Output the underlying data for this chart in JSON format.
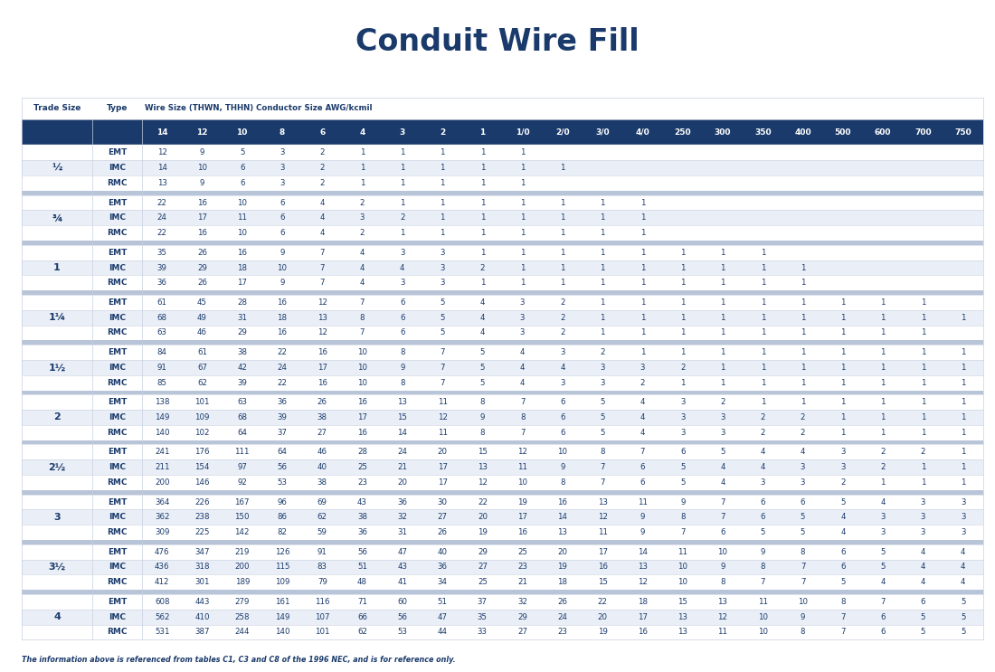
{
  "title": "Conduit Wire Fill",
  "subtitle": "Wire Size (THWN, THHN) Conductor Size AWG/kcmil",
  "footnote": "The information above is referenced from tables C1, C3 and C8 of the 1996 NEC, and is for reference only.",
  "col_header_label1": "Trade Size",
  "col_header_label2": "Type",
  "wire_sizes": [
    "14",
    "12",
    "10",
    "8",
    "6",
    "4",
    "3",
    "2",
    "1",
    "1/0",
    "2/0",
    "3/0",
    "4/0",
    "250",
    "300",
    "350",
    "400",
    "500",
    "600",
    "700",
    "750"
  ],
  "trade_sizes": [
    "½",
    "¾",
    "1",
    "1¼",
    "1½",
    "2",
    "2½",
    "3",
    "3½",
    "4"
  ],
  "types": [
    "EMT",
    "IMC",
    "RMC"
  ],
  "data": {
    "½": {
      "EMT": [
        "12",
        "9",
        "5",
        "3",
        "2",
        "1",
        "1",
        "1",
        "1",
        "1",
        "",
        "",
        "",
        "",
        "",
        "",
        "",
        "",
        "",
        "",
        ""
      ],
      "IMC": [
        "14",
        "10",
        "6",
        "3",
        "2",
        "1",
        "1",
        "1",
        "1",
        "1",
        "1",
        "",
        "",
        "",
        "",
        "",
        "",
        "",
        "",
        "",
        ""
      ],
      "RMC": [
        "13",
        "9",
        "6",
        "3",
        "2",
        "1",
        "1",
        "1",
        "1",
        "1",
        "",
        "",
        "",
        "",
        "",
        "",
        "",
        "",
        "",
        "",
        ""
      ]
    },
    "¾": {
      "EMT": [
        "22",
        "16",
        "10",
        "6",
        "4",
        "2",
        "1",
        "1",
        "1",
        "1",
        "1",
        "1",
        "1",
        "",
        "",
        "",
        "",
        "",
        "",
        "",
        ""
      ],
      "IMC": [
        "24",
        "17",
        "11",
        "6",
        "4",
        "3",
        "2",
        "1",
        "1",
        "1",
        "1",
        "1",
        "1",
        "",
        "",
        "",
        "",
        "",
        "",
        "",
        ""
      ],
      "RMC": [
        "22",
        "16",
        "10",
        "6",
        "4",
        "2",
        "1",
        "1",
        "1",
        "1",
        "1",
        "1",
        "1",
        "",
        "",
        "",
        "",
        "",
        "",
        "",
        ""
      ]
    },
    "1": {
      "EMT": [
        "35",
        "26",
        "16",
        "9",
        "7",
        "4",
        "3",
        "3",
        "1",
        "1",
        "1",
        "1",
        "1",
        "1",
        "1",
        "1",
        "",
        "",
        "",
        "",
        ""
      ],
      "IMC": [
        "39",
        "29",
        "18",
        "10",
        "7",
        "4",
        "4",
        "3",
        "2",
        "1",
        "1",
        "1",
        "1",
        "1",
        "1",
        "1",
        "1",
        "",
        "",
        "",
        ""
      ],
      "RMC": [
        "36",
        "26",
        "17",
        "9",
        "7",
        "4",
        "3",
        "3",
        "1",
        "1",
        "1",
        "1",
        "1",
        "1",
        "1",
        "1",
        "1",
        "",
        "",
        "",
        ""
      ]
    },
    "1¼": {
      "EMT": [
        "61",
        "45",
        "28",
        "16",
        "12",
        "7",
        "6",
        "5",
        "4",
        "3",
        "2",
        "1",
        "1",
        "1",
        "1",
        "1",
        "1",
        "1",
        "1",
        "1",
        ""
      ],
      "IMC": [
        "68",
        "49",
        "31",
        "18",
        "13",
        "8",
        "6",
        "5",
        "4",
        "3",
        "2",
        "1",
        "1",
        "1",
        "1",
        "1",
        "1",
        "1",
        "1",
        "1",
        "1"
      ],
      "RMC": [
        "63",
        "46",
        "29",
        "16",
        "12",
        "7",
        "6",
        "5",
        "4",
        "3",
        "2",
        "1",
        "1",
        "1",
        "1",
        "1",
        "1",
        "1",
        "1",
        "1",
        ""
      ]
    },
    "1½": {
      "EMT": [
        "84",
        "61",
        "38",
        "22",
        "16",
        "10",
        "8",
        "7",
        "5",
        "4",
        "3",
        "2",
        "1",
        "1",
        "1",
        "1",
        "1",
        "1",
        "1",
        "1",
        "1"
      ],
      "IMC": [
        "91",
        "67",
        "42",
        "24",
        "17",
        "10",
        "9",
        "7",
        "5",
        "4",
        "4",
        "3",
        "3",
        "2",
        "1",
        "1",
        "1",
        "1",
        "1",
        "1",
        "1"
      ],
      "RMC": [
        "85",
        "62",
        "39",
        "22",
        "16",
        "10",
        "8",
        "7",
        "5",
        "4",
        "3",
        "3",
        "2",
        "1",
        "1",
        "1",
        "1",
        "1",
        "1",
        "1",
        "1"
      ]
    },
    "2": {
      "EMT": [
        "138",
        "101",
        "63",
        "36",
        "26",
        "16",
        "13",
        "11",
        "8",
        "7",
        "6",
        "5",
        "4",
        "3",
        "2",
        "1",
        "1",
        "1",
        "1",
        "1",
        "1"
      ],
      "IMC": [
        "149",
        "109",
        "68",
        "39",
        "38",
        "17",
        "15",
        "12",
        "9",
        "8",
        "6",
        "5",
        "4",
        "3",
        "3",
        "2",
        "2",
        "1",
        "1",
        "1",
        "1"
      ],
      "RMC": [
        "140",
        "102",
        "64",
        "37",
        "27",
        "16",
        "14",
        "11",
        "8",
        "7",
        "6",
        "5",
        "4",
        "3",
        "3",
        "2",
        "2",
        "1",
        "1",
        "1",
        "1"
      ]
    },
    "2½": {
      "EMT": [
        "241",
        "176",
        "111",
        "64",
        "46",
        "28",
        "24",
        "20",
        "15",
        "12",
        "10",
        "8",
        "7",
        "6",
        "5",
        "4",
        "4",
        "3",
        "2",
        "2",
        "1"
      ],
      "IMC": [
        "211",
        "154",
        "97",
        "56",
        "40",
        "25",
        "21",
        "17",
        "13",
        "11",
        "9",
        "7",
        "6",
        "5",
        "4",
        "4",
        "3",
        "3",
        "2",
        "1",
        "1"
      ],
      "RMC": [
        "200",
        "146",
        "92",
        "53",
        "38",
        "23",
        "20",
        "17",
        "12",
        "10",
        "8",
        "7",
        "6",
        "5",
        "4",
        "3",
        "3",
        "2",
        "1",
        "1",
        "1"
      ]
    },
    "3": {
      "EMT": [
        "364",
        "226",
        "167",
        "96",
        "69",
        "43",
        "36",
        "30",
        "22",
        "19",
        "16",
        "13",
        "11",
        "9",
        "7",
        "6",
        "6",
        "5",
        "4",
        "3",
        "3"
      ],
      "IMC": [
        "362",
        "238",
        "150",
        "86",
        "62",
        "38",
        "32",
        "27",
        "20",
        "17",
        "14",
        "12",
        "9",
        "8",
        "7",
        "6",
        "5",
        "4",
        "3",
        "3",
        "3"
      ],
      "RMC": [
        "309",
        "225",
        "142",
        "82",
        "59",
        "36",
        "31",
        "26",
        "19",
        "16",
        "13",
        "11",
        "9",
        "7",
        "6",
        "5",
        "5",
        "4",
        "3",
        "3",
        "3"
      ]
    },
    "3½": {
      "EMT": [
        "476",
        "347",
        "219",
        "126",
        "91",
        "56",
        "47",
        "40",
        "29",
        "25",
        "20",
        "17",
        "14",
        "11",
        "10",
        "9",
        "8",
        "6",
        "5",
        "4",
        "4"
      ],
      "IMC": [
        "436",
        "318",
        "200",
        "115",
        "83",
        "51",
        "43",
        "36",
        "27",
        "23",
        "19",
        "16",
        "13",
        "10",
        "9",
        "8",
        "7",
        "6",
        "5",
        "4",
        "4"
      ],
      "RMC": [
        "412",
        "301",
        "189",
        "109",
        "79",
        "48",
        "41",
        "34",
        "25",
        "21",
        "18",
        "15",
        "12",
        "10",
        "8",
        "7",
        "7",
        "5",
        "4",
        "4",
        "4"
      ]
    },
    "4": {
      "EMT": [
        "608",
        "443",
        "279",
        "161",
        "116",
        "71",
        "60",
        "51",
        "37",
        "32",
        "26",
        "22",
        "18",
        "15",
        "13",
        "11",
        "10",
        "8",
        "7",
        "6",
        "5"
      ],
      "IMC": [
        "562",
        "410",
        "258",
        "149",
        "107",
        "66",
        "56",
        "47",
        "35",
        "29",
        "24",
        "20",
        "17",
        "13",
        "12",
        "10",
        "9",
        "7",
        "6",
        "5",
        "5"
      ],
      "RMC": [
        "531",
        "387",
        "244",
        "140",
        "101",
        "62",
        "53",
        "44",
        "33",
        "27",
        "23",
        "19",
        "16",
        "13",
        "11",
        "10",
        "8",
        "7",
        "6",
        "5",
        "5"
      ]
    }
  },
  "header_bg": "#1a3a6b",
  "header_fg": "#ffffff",
  "row_bg_even": "#ffffff",
  "row_bg_odd": "#eaeff7",
  "row_fg": "#1a3a6b",
  "type_fg": "#1a3a6b",
  "trade_size_fg": "#1a3a6b",
  "title_color": "#1a3a6b",
  "footnote_color": "#1a3a6b",
  "sep_color": "#b8c4d8",
  "line_color": "#c8d0e0"
}
